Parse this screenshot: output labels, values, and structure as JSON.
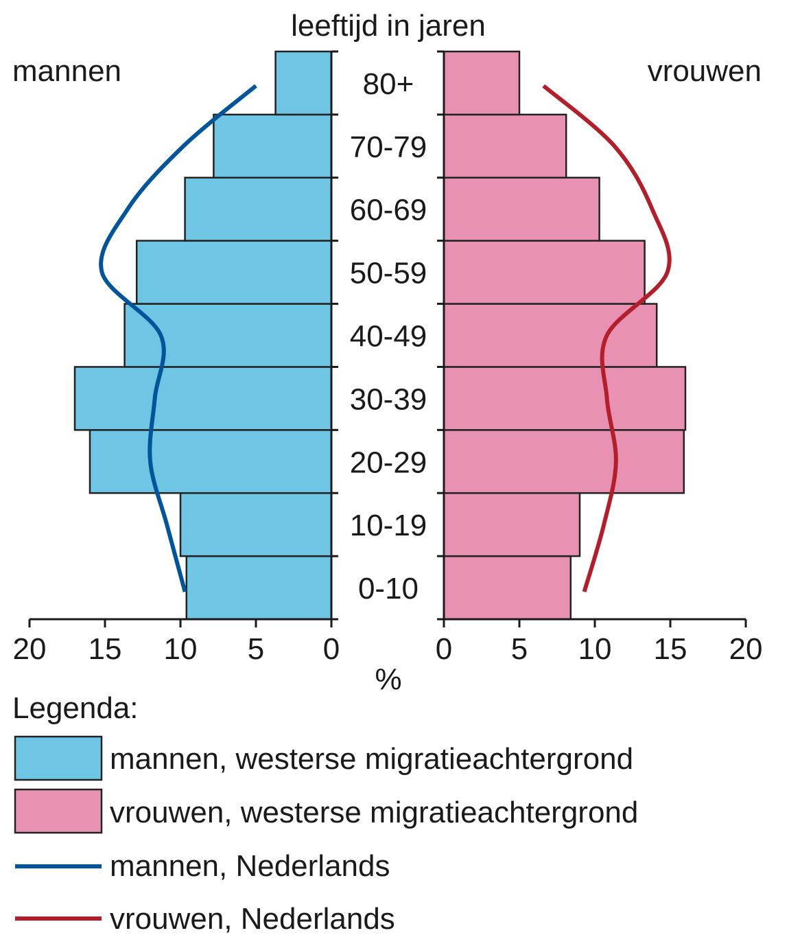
{
  "chart_data": {
    "type": "bar",
    "subtype": "population-pyramid",
    "title": "leeftijd in jaren",
    "xlabel": "%",
    "ylabel": "leeftijd in jaren",
    "left_label": "mannen",
    "right_label": "vrouwen",
    "categories": [
      "0-10",
      "10-19",
      "20-29",
      "30-39",
      "40-49",
      "50-59",
      "60-69",
      "70-79",
      "80+"
    ],
    "xlim": [
      0,
      20
    ],
    "x_ticks_left": [
      "20",
      "15",
      "10",
      "5",
      "0"
    ],
    "x_ticks_right": [
      "0",
      "5",
      "10",
      "15",
      "20"
    ],
    "grid": false,
    "legend_position": "bottom",
    "series": [
      {
        "name": "mannen, westerse migratieachtergrond",
        "kind": "bar",
        "side": "left",
        "color": "#6FC6E4",
        "values": [
          9.6,
          10.0,
          16.0,
          17.0,
          13.7,
          12.9,
          9.7,
          7.8,
          3.7
        ]
      },
      {
        "name": "vrouwen, westerse migratieachtergrond",
        "kind": "bar",
        "side": "right",
        "color": "#E891B2",
        "values": [
          8.4,
          9.0,
          15.9,
          16.0,
          14.1,
          13.3,
          10.3,
          8.1,
          5.0
        ]
      },
      {
        "name": "mannen, Nederlands",
        "kind": "line",
        "side": "left",
        "color": "#00559A",
        "values": [
          9.7,
          10.9,
          12.0,
          11.7,
          11.3,
          15.2,
          13.5,
          9.8,
          5.0
        ]
      },
      {
        "name": "vrouwen, Nederlands",
        "kind": "line",
        "side": "right",
        "color": "#B21F2A",
        "values": [
          9.3,
          10.6,
          11.4,
          10.8,
          10.8,
          14.8,
          13.8,
          11.3,
          6.6
        ]
      }
    ]
  },
  "labels": {
    "title": "leeftijd in jaren",
    "left": "mannen",
    "right": "vrouwen",
    "unit": "%",
    "legend_title": "Legenda:"
  },
  "legend": [
    {
      "label": "mannen, westerse migratieachtergrond",
      "type": "box",
      "color": "#6FC6E4"
    },
    {
      "label": "vrouwen, westerse migratieachtergrond",
      "type": "box",
      "color": "#E891B2"
    },
    {
      "label": "mannen, Nederlands",
      "type": "line",
      "color": "#00559A"
    },
    {
      "label": "vrouwen, Nederlands",
      "type": "line",
      "color": "#B21F2A"
    }
  ]
}
